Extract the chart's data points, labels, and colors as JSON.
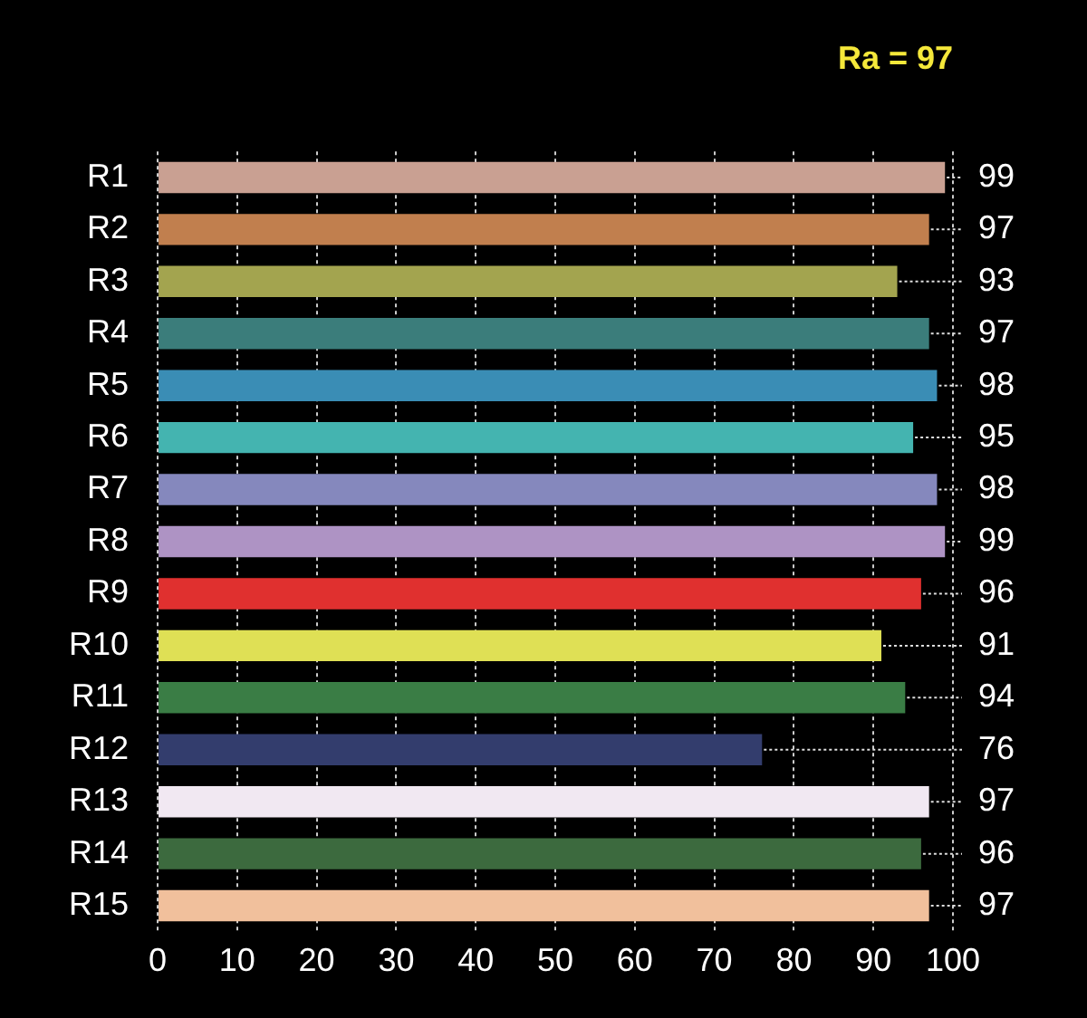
{
  "chart_data": {
    "type": "bar",
    "orientation": "horizontal",
    "title": "Ra = 97",
    "categories": [
      "R1",
      "R2",
      "R3",
      "R4",
      "R5",
      "R6",
      "R7",
      "R8",
      "R9",
      "R10",
      "R11",
      "R12",
      "R13",
      "R14",
      "R15"
    ],
    "values": [
      99,
      97,
      93,
      97,
      98,
      95,
      98,
      99,
      96,
      91,
      94,
      76,
      97,
      96,
      97
    ],
    "colors": [
      "#c9a092",
      "#c17f4e",
      "#a3a44f",
      "#3b7d7b",
      "#3a8db5",
      "#44b4b0",
      "#8588bd",
      "#ae93c4",
      "#e0302f",
      "#dfe055",
      "#3a7d45",
      "#333d6d",
      "#f1e8f2",
      "#3c6a3e",
      "#f1c09c"
    ],
    "xlim": [
      0,
      100
    ],
    "xticks": [
      0,
      10,
      20,
      30,
      40,
      50,
      60,
      70,
      80,
      90,
      100
    ],
    "grid": "x",
    "data_labels": true,
    "legend": false
  }
}
